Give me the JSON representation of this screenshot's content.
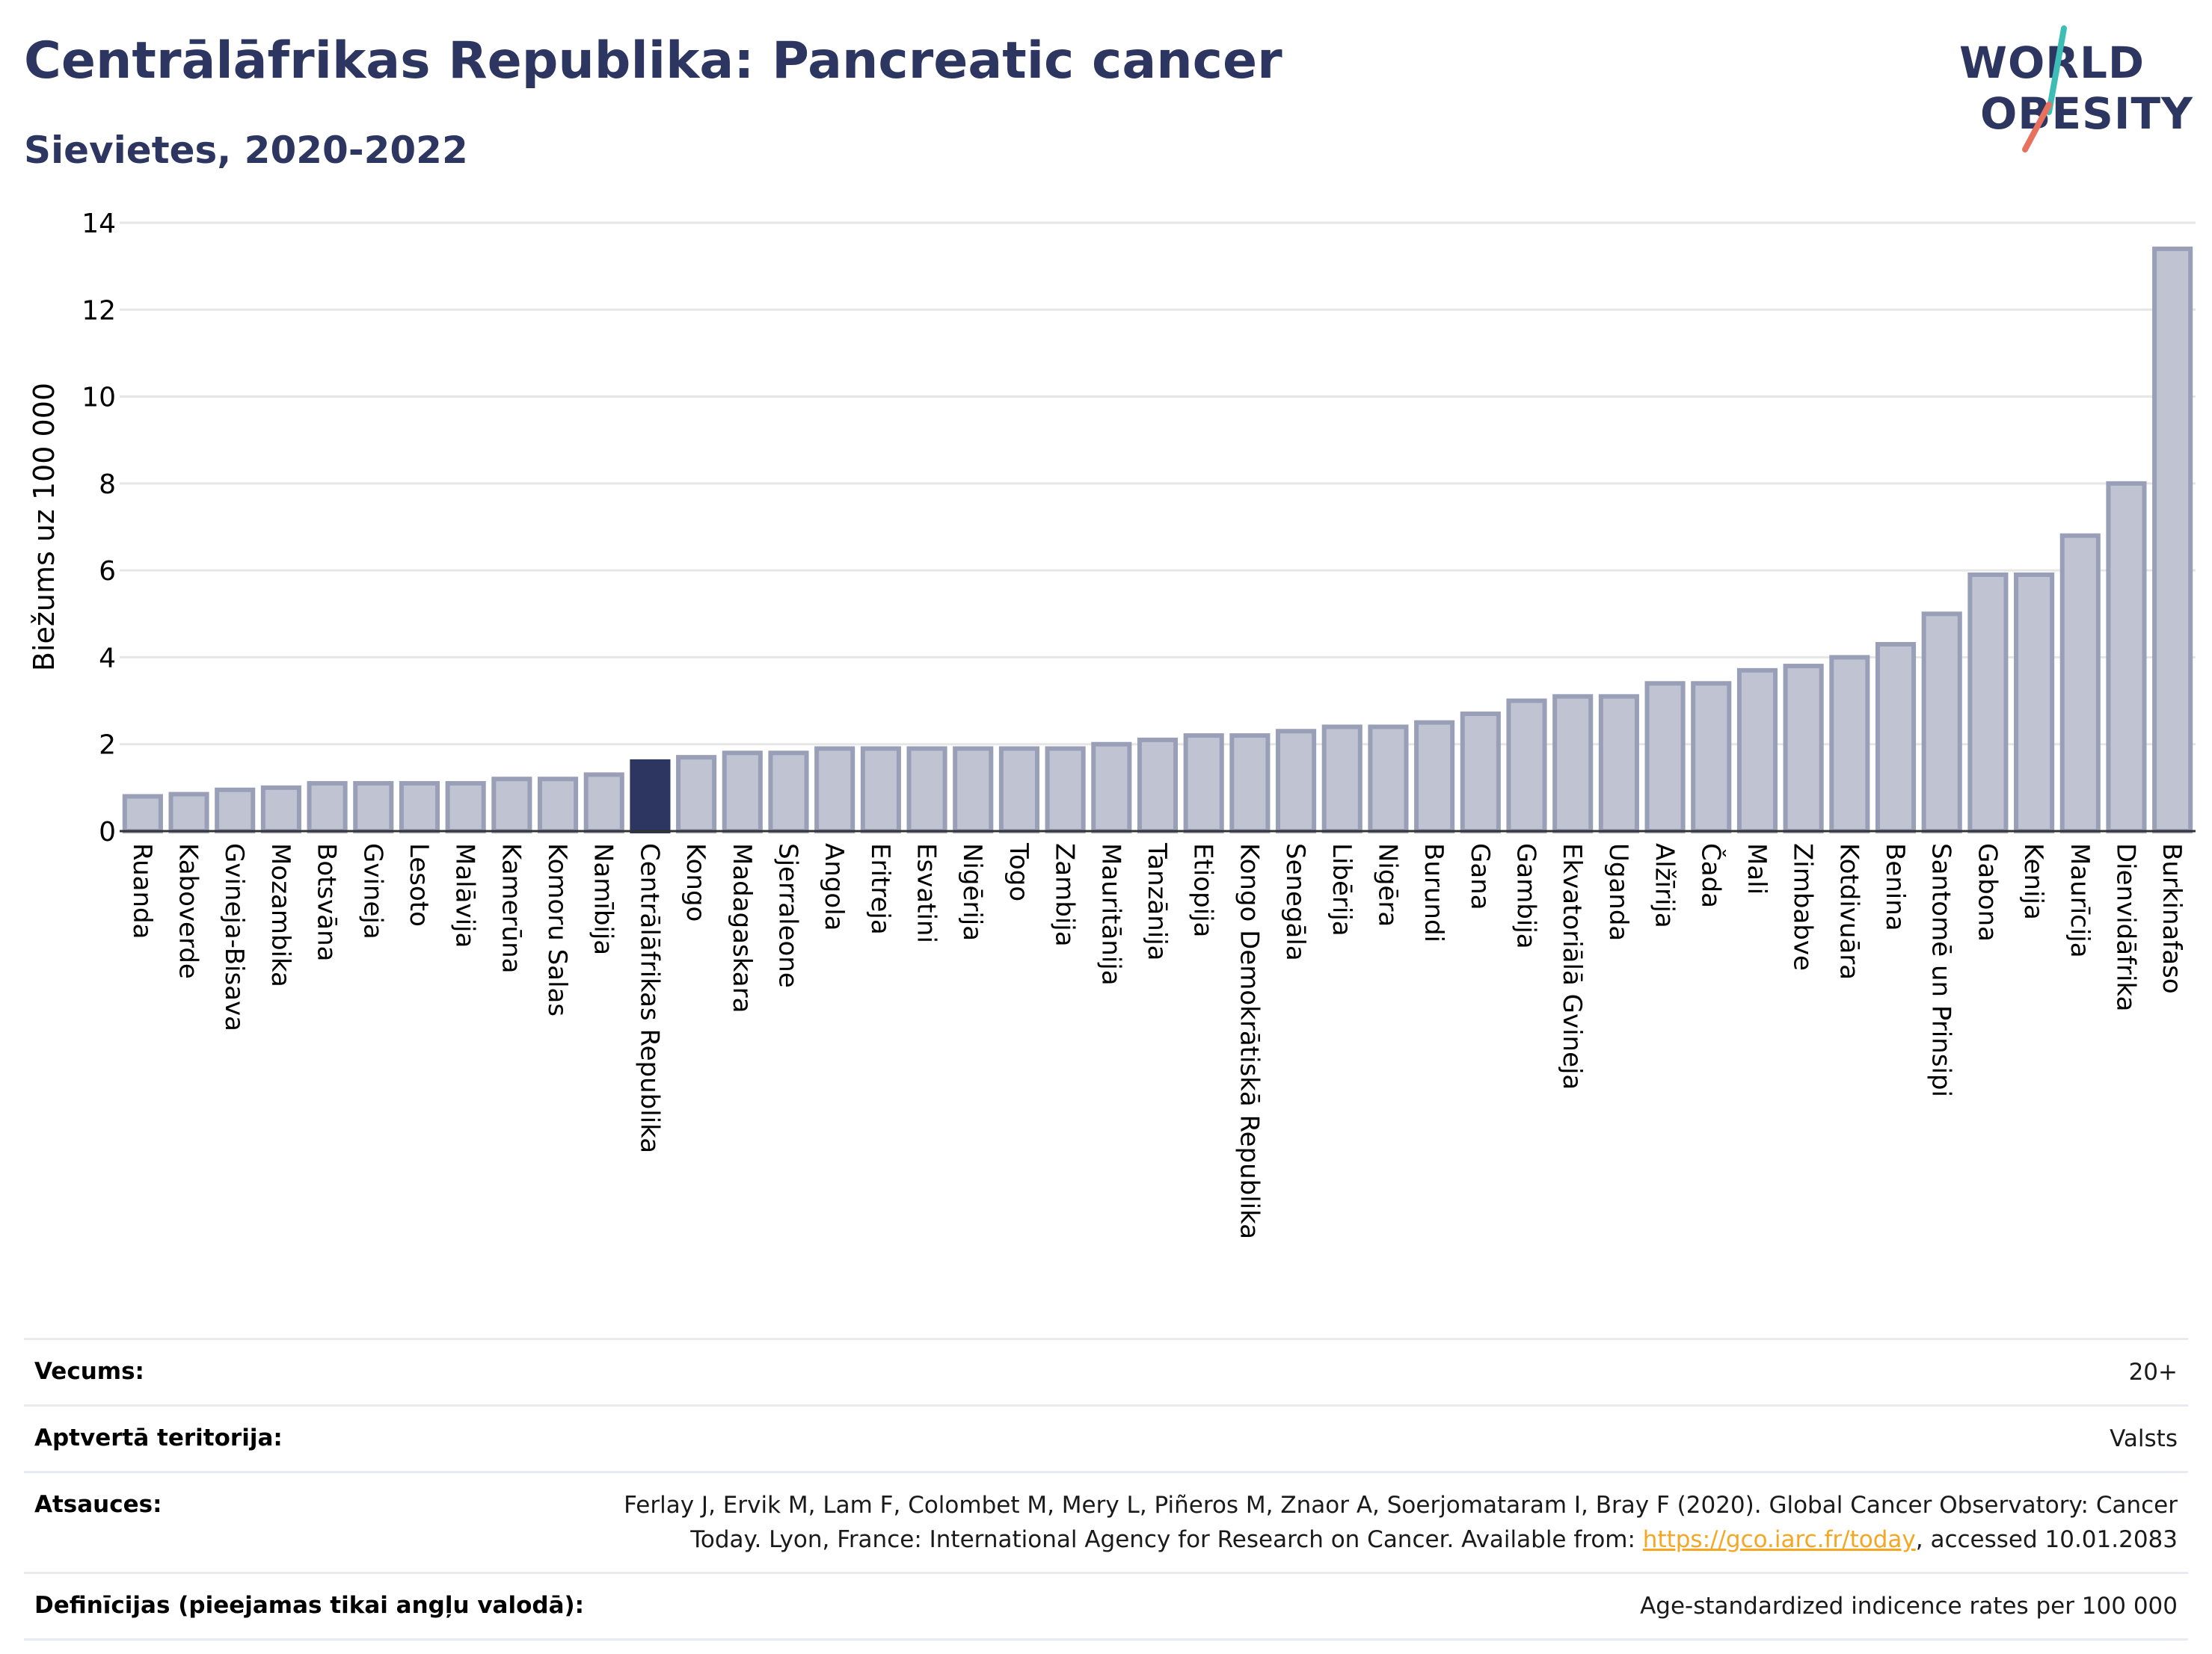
{
  "header": {
    "title": "Centrālāfrikas Republika: Pancreatic cancer",
    "subtitle": "Sievietes, 2020-2022"
  },
  "logo": {
    "line1": "WORLD",
    "line2": "OBESITY",
    "colors": {
      "text": "#2d3561",
      "slash_top": "#3dbdb5",
      "slash_bottom": "#e8705f"
    }
  },
  "colors": {
    "bar": "#bfc3d2",
    "bar_border": "#9a9fb8",
    "highlight": "#2d3561",
    "grid": "#e6e6e6",
    "link": "#f5a623"
  },
  "chart_data": {
    "type": "bar",
    "ylabel": "Biežums uz 100 000",
    "ylim": [
      0,
      14
    ],
    "yticks": [
      0,
      2,
      4,
      6,
      8,
      10,
      12,
      14
    ],
    "grid": true,
    "highlight": "Centrālāfrikas Republika",
    "categories": [
      "Ruanda",
      "Kaboverde",
      "Gvineja-Bisava",
      "Mozambika",
      "Botsvāna",
      "Gvineja",
      "Lesoto",
      "Malāvija",
      "Kamerūna",
      "Komoru Salas",
      "Namībija",
      "Centrālāfrikas Republika",
      "Kongo",
      "Madagaskara",
      "Sjerraleone",
      "Angola",
      "Eritreja",
      "Esvatini",
      "Nigērija",
      "Togo",
      "Zambija",
      "Mauritānija",
      "Tanzānija",
      "Etiopija",
      "Kongo Demokrātiskā Republika",
      "Senegāla",
      "Libērija",
      "Nigēra",
      "Burundi",
      "Gana",
      "Gambija",
      "Ekvatoriālā Gvineja",
      "Uganda",
      "Alžīrija",
      "Čada",
      "Mali",
      "Zimbabve",
      "Kotdivuāra",
      "Benina",
      "Santomē un Prinsipi",
      "Gabona",
      "Kenija",
      "Maurīcija",
      "Dienvidāfrika",
      "Burkinafaso"
    ],
    "values": [
      0.8,
      0.85,
      0.95,
      1.0,
      1.1,
      1.1,
      1.1,
      1.1,
      1.2,
      1.2,
      1.3,
      1.6,
      1.7,
      1.8,
      1.8,
      1.9,
      1.9,
      1.9,
      1.9,
      1.9,
      1.9,
      2.0,
      2.1,
      2.2,
      2.2,
      2.3,
      2.4,
      2.4,
      2.5,
      2.7,
      3.0,
      3.1,
      3.1,
      3.4,
      3.4,
      3.7,
      3.8,
      4.0,
      4.3,
      5.0,
      5.9,
      5.9,
      6.8,
      8.0,
      13.4
    ]
  },
  "info": [
    {
      "key": "Vecums:",
      "value": "20+"
    },
    {
      "key": "Aptvertā teritorija:",
      "value": "Valsts"
    },
    {
      "key": "Atsauces:",
      "value_line1": "Ferlay J, Ervik M, Lam F, Colombet M, Mery L, Piñeros M, Znaor A, Soerjomataram I, Bray F (2020). Global Cancer Observatory: Cancer",
      "value_line2_pre": "Today. Lyon, France: International Agency for Research on Cancer. Available from: ",
      "link": "https://gco.iarc.fr/today",
      "value_line2_post": ", accessed 10.01.2083"
    },
    {
      "key": "Definīcijas (pieejamas tikai angļu valodā):",
      "value": "Age-standardized indicence rates per 100 000"
    }
  ]
}
